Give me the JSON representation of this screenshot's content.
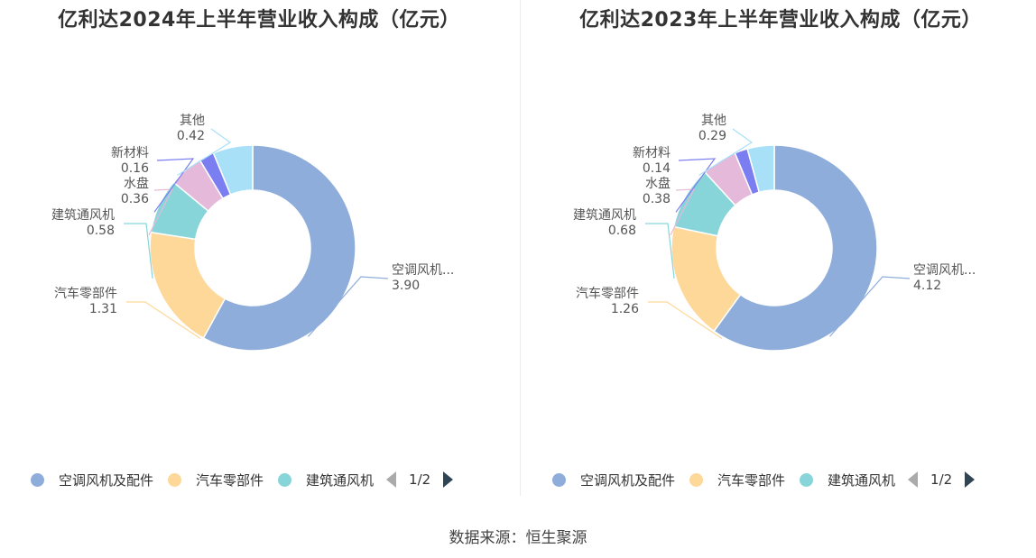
{
  "charts": [
    {
      "title": "亿利达2024年上半年营业收入构成（亿元）",
      "labels": [
        {
          "name": "空调风机...",
          "value": "3.90"
        },
        {
          "name": "汽车零部件",
          "value": "1.31"
        },
        {
          "name": "建筑通风机",
          "value": "0.58"
        },
        {
          "name": "水盘",
          "value": "0.36"
        },
        {
          "name": "新材料",
          "value": "0.16"
        },
        {
          "name": "其他",
          "value": "0.42"
        }
      ],
      "legend": [
        "空调风机及配件",
        "汽车零部件",
        "建筑通风机"
      ],
      "page": "1/2"
    },
    {
      "title": "亿利达2023年上半年营业收入构成（亿元）",
      "labels": [
        {
          "name": "空调风机...",
          "value": "4.12"
        },
        {
          "name": "汽车零部件",
          "value": "1.26"
        },
        {
          "name": "建筑通风机",
          "value": "0.68"
        },
        {
          "name": "水盘",
          "value": "0.38"
        },
        {
          "name": "新材料",
          "value": "0.14"
        },
        {
          "name": "其他",
          "value": "0.29"
        }
      ],
      "legend": [
        "空调风机及配件",
        "汽车零部件",
        "建筑通风机"
      ],
      "page": "1/2"
    }
  ],
  "chart_data": [
    {
      "type": "pie",
      "title": "亿利达2024年上半年营业收入构成（亿元）",
      "categories": [
        "空调风机及配件",
        "汽车零部件",
        "建筑通风机",
        "水盘",
        "新材料",
        "其他"
      ],
      "values": [
        3.9,
        1.31,
        0.58,
        0.36,
        0.16,
        0.42
      ],
      "colors": [
        "#8eaddb",
        "#fed899",
        "#88d5d9",
        "#e5b9da",
        "#7b7ef0",
        "#a8e0f8"
      ],
      "legend_position": "bottom"
    },
    {
      "type": "pie",
      "title": "亿利达2023年上半年营业收入构成（亿元）",
      "categories": [
        "空调风机及配件",
        "汽车零部件",
        "建筑通风机",
        "水盘",
        "新材料",
        "其他"
      ],
      "values": [
        4.12,
        1.26,
        0.68,
        0.38,
        0.14,
        0.29
      ],
      "colors": [
        "#8eaddb",
        "#fed899",
        "#88d5d9",
        "#e5b9da",
        "#7b7ef0",
        "#a8e0f8"
      ],
      "legend_position": "bottom"
    }
  ],
  "source": "数据来源：恒生聚源"
}
